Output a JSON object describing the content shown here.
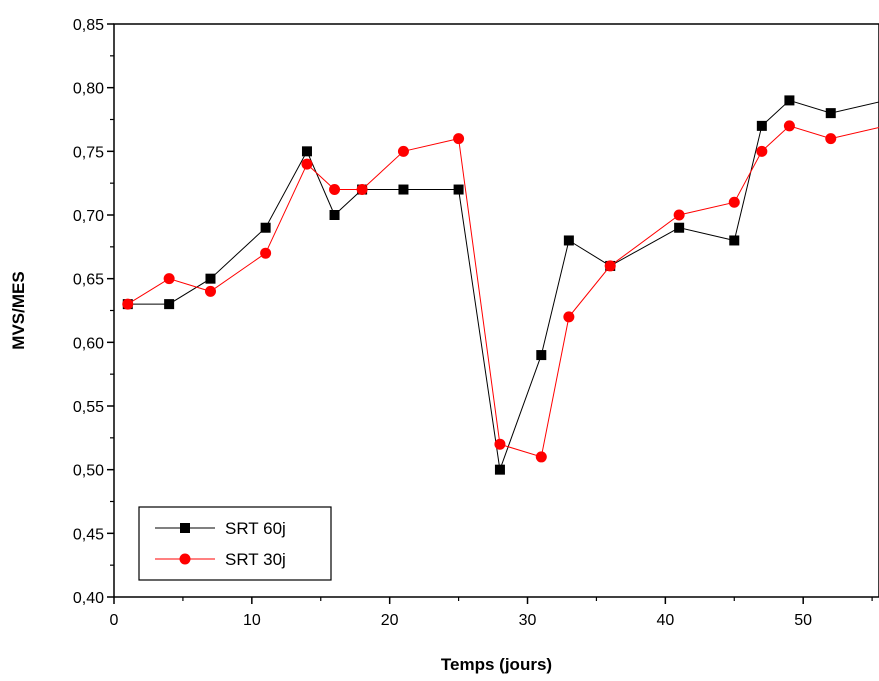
{
  "chart_data": {
    "type": "line",
    "title": "",
    "xlabel": "Temps (jours)",
    "ylabel": "MVS/MES",
    "xlim": [
      0,
      55.5
    ],
    "ylim": [
      0.4,
      0.85
    ],
    "x_ticks": [
      0,
      10,
      20,
      30,
      40,
      50
    ],
    "x_tick_labels": [
      "0",
      "10",
      "20",
      "30",
      "40",
      "50"
    ],
    "y_ticks": [
      0.4,
      0.45,
      0.5,
      0.55,
      0.6,
      0.65,
      0.7,
      0.75,
      0.8,
      0.85
    ],
    "y_tick_labels": [
      "0,40",
      "0,45",
      "0,50",
      "0,55",
      "0,60",
      "0,65",
      "0,70",
      "0,75",
      "0,80",
      "0,85"
    ],
    "grid": false,
    "legend_position": "bottom-left",
    "series": [
      {
        "name": "SRT 60j",
        "color": "#000000",
        "marker": "square",
        "x": [
          1,
          4,
          7,
          11,
          14,
          16,
          18,
          21,
          25,
          28,
          31,
          33,
          36,
          41,
          45,
          47,
          49,
          52,
          56
        ],
        "y": [
          0.63,
          0.63,
          0.65,
          0.69,
          0.75,
          0.7,
          0.72,
          0.72,
          0.72,
          0.5,
          0.59,
          0.68,
          0.66,
          0.69,
          0.68,
          0.77,
          0.79,
          0.78,
          0.79
        ]
      },
      {
        "name": "SRT 30j",
        "color": "#ff0000",
        "marker": "circle",
        "x": [
          1,
          4,
          7,
          11,
          14,
          16,
          18,
          21,
          25,
          28,
          31,
          33,
          36,
          41,
          45,
          47,
          49,
          52,
          56
        ],
        "y": [
          0.63,
          0.65,
          0.64,
          0.67,
          0.74,
          0.72,
          0.72,
          0.75,
          0.76,
          0.52,
          0.51,
          0.62,
          0.66,
          0.7,
          0.71,
          0.75,
          0.77,
          0.76,
          0.77
        ]
      }
    ]
  }
}
